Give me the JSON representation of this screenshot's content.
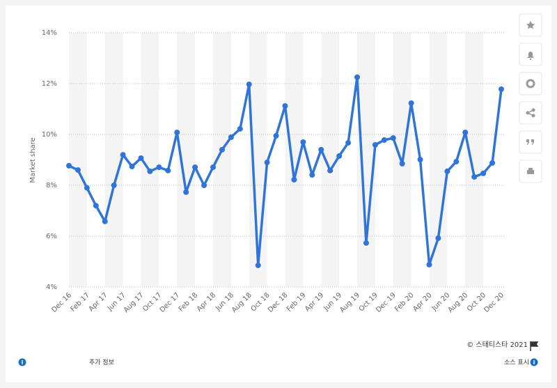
{
  "chart_data": {
    "type": "line",
    "y_label": "Market share",
    "categories": [
      "Dec 16",
      null,
      "Feb 17",
      null,
      "Apr 17",
      null,
      "Jun 17",
      null,
      "Aug 17",
      null,
      "Oct 17",
      null,
      "Dec 17",
      null,
      "Feb 18",
      null,
      "Apr 18",
      null,
      "Jun 18",
      null,
      "Aug 18",
      null,
      "Oct 18",
      null,
      "Dec 18",
      null,
      "Feb 19",
      null,
      "Apr 19",
      null,
      "Jun 19",
      null,
      "Aug 19",
      null,
      "Oct 19",
      null,
      "Dec 19",
      null,
      "Feb 20",
      null,
      "Apr 20",
      null,
      "Jun 20",
      null,
      "Aug 20",
      null,
      "Oct 20",
      null,
      "Dec 20"
    ],
    "series": [
      {
        "name": "Market share",
        "color": "#2f74d8",
        "values": [
          8.77,
          8.6,
          7.9,
          7.2,
          6.58,
          8.0,
          9.2,
          8.74,
          9.07,
          8.55,
          8.71,
          8.58,
          10.08,
          7.73,
          8.71,
          8.0,
          8.71,
          9.4,
          9.89,
          10.22,
          11.97,
          4.85,
          8.9,
          9.95,
          11.12,
          8.22,
          9.7,
          8.41,
          9.4,
          8.58,
          9.15,
          9.67,
          12.25,
          5.73,
          9.59,
          9.78,
          9.86,
          8.85,
          11.23,
          9.01,
          4.88,
          5.92,
          8.55,
          8.93,
          10.08,
          8.33,
          8.47,
          8.88,
          11.78
        ]
      }
    ],
    "ylim": [
      4,
      14
    ],
    "yticks": [
      {
        "value": 4,
        "label": "4%"
      },
      {
        "value": 6,
        "label": "6%"
      },
      {
        "value": 8,
        "label": "8%"
      },
      {
        "value": 10,
        "label": "10%"
      },
      {
        "value": 12,
        "label": "12%"
      },
      {
        "value": 14,
        "label": "14%"
      }
    ],
    "grid": true
  },
  "footer": {
    "copyright": "© 스태티스타 2021",
    "more_info": "추가 정보",
    "show_source": "소스 표시"
  }
}
